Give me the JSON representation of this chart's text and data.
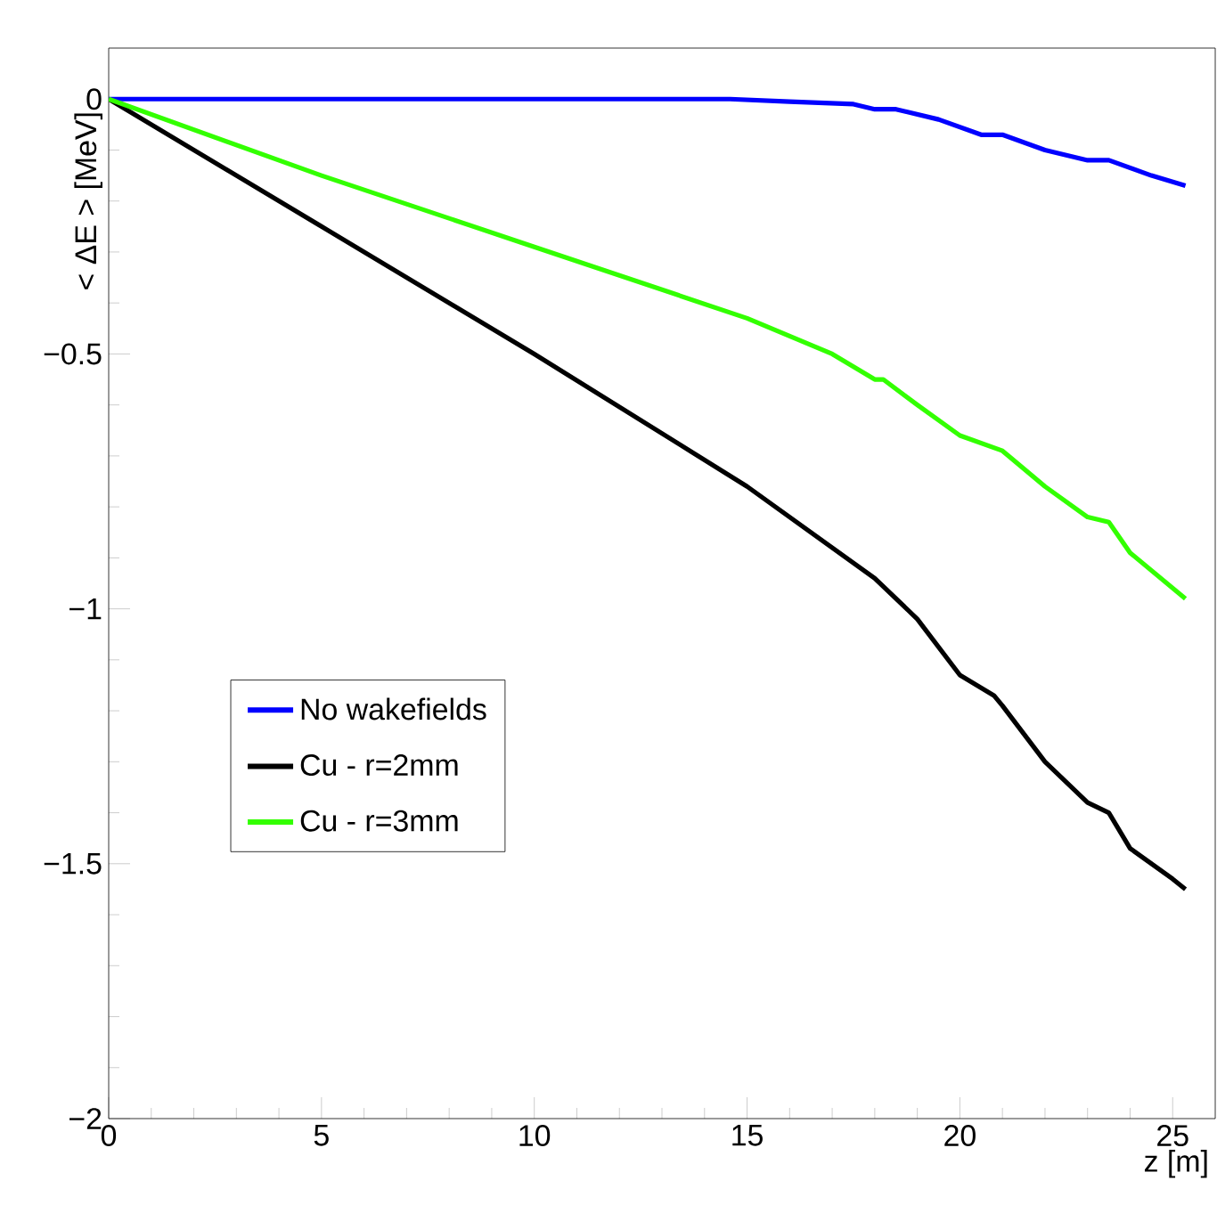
{
  "chart_data": {
    "type": "line",
    "xlabel": "z [m]",
    "ylabel": "< ΔE > [MeV]",
    "xlim": [
      0,
      26
    ],
    "ylim": [
      -2,
      0.1
    ],
    "xticks": [
      0,
      5,
      10,
      15,
      20,
      25
    ],
    "yticks": [
      {
        "value": -2,
        "label": "−2"
      },
      {
        "value": -1.5,
        "label": "−1.5"
      },
      {
        "value": -1,
        "label": "−1"
      },
      {
        "value": -0.5,
        "label": "−0.5"
      },
      0
    ],
    "legend": "bottom left",
    "grid": false,
    "marker": "none",
    "line_style": "solid",
    "series": [
      {
        "name": "No wakefields",
        "color": "#0000ff",
        "x": [
          0,
          5,
          10,
          14.6,
          16,
          17.5,
          18,
          18.5,
          19.5,
          20.5,
          21,
          22,
          23,
          23.5,
          24.5,
          25.3
        ],
        "values": [
          0,
          0,
          0,
          0,
          -0.005,
          -0.01,
          -0.02,
          -0.02,
          -0.04,
          -0.07,
          -0.07,
          -0.1,
          -0.12,
          -0.12,
          -0.15,
          -0.17
        ]
      },
      {
        "name": "Cu - r=2mm",
        "color": "#000000",
        "x": [
          0,
          5,
          10,
          15,
          18,
          19,
          20,
          20.8,
          21,
          22,
          23,
          23.5,
          24,
          25,
          25.3
        ],
        "values": [
          0,
          -0.25,
          -0.5,
          -0.76,
          -0.94,
          -1.02,
          -1.13,
          -1.17,
          -1.19,
          -1.3,
          -1.38,
          -1.4,
          -1.47,
          -1.53,
          -1.55
        ]
      },
      {
        "name": "Cu - r=3mm",
        "color": "#33ff00",
        "x": [
          0,
          5,
          10,
          15,
          17,
          18,
          18.2,
          19,
          20,
          21,
          22,
          23,
          23.5,
          24,
          25.3
        ],
        "values": [
          0,
          -0.15,
          -0.29,
          -0.43,
          -0.5,
          -0.55,
          -0.55,
          -0.6,
          -0.66,
          -0.69,
          -0.76,
          -0.82,
          -0.83,
          -0.89,
          -0.98
        ]
      }
    ]
  }
}
